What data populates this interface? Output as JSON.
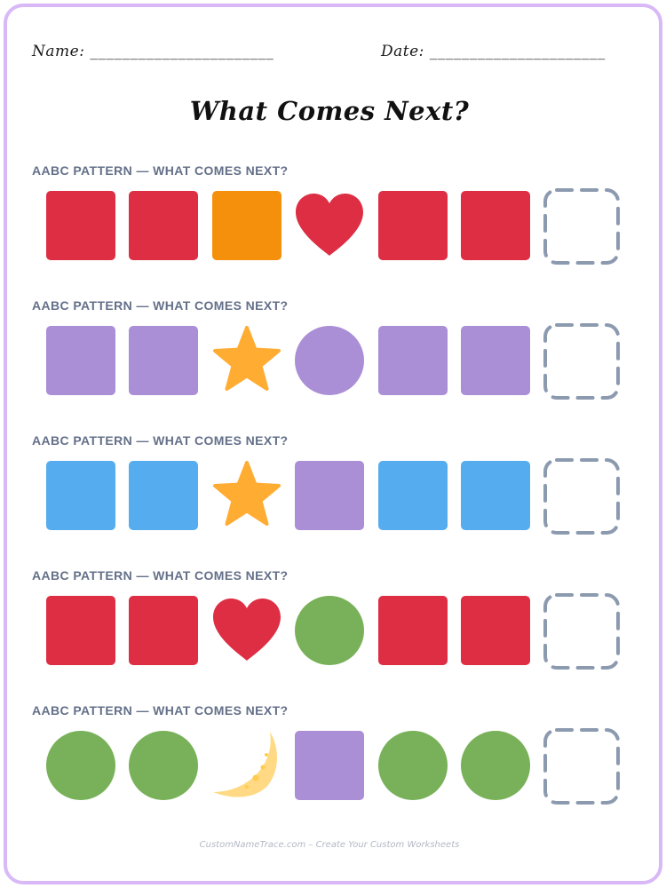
{
  "header": {
    "name_label": "Name: _______________________",
    "date_label": "Date: ______________________"
  },
  "title": "What Comes Next?",
  "patterns": [
    {
      "label": "AABC PATTERN — WHAT COMES NEXT?",
      "items": [
        {
          "shape": "square",
          "color": "#dd2e44"
        },
        {
          "shape": "square",
          "color": "#dd2e44"
        },
        {
          "shape": "square",
          "color": "#f4900c"
        },
        {
          "shape": "heart",
          "color": "#dd2e44"
        },
        {
          "shape": "square",
          "color": "#dd2e44"
        },
        {
          "shape": "square",
          "color": "#dd2e44"
        }
      ]
    },
    {
      "label": "AABC PATTERN — WHAT COMES NEXT?",
      "items": [
        {
          "shape": "square",
          "color": "#aa8ed6"
        },
        {
          "shape": "square",
          "color": "#aa8ed6"
        },
        {
          "shape": "star",
          "color": "#ffac33"
        },
        {
          "shape": "circle",
          "color": "#aa8ed6"
        },
        {
          "shape": "square",
          "color": "#aa8ed6"
        },
        {
          "shape": "square",
          "color": "#aa8ed6"
        }
      ]
    },
    {
      "label": "AABC PATTERN — WHAT COMES NEXT?",
      "items": [
        {
          "shape": "square",
          "color": "#55acee"
        },
        {
          "shape": "square",
          "color": "#55acee"
        },
        {
          "shape": "star",
          "color": "#ffac33"
        },
        {
          "shape": "square",
          "color": "#aa8ed6"
        },
        {
          "shape": "square",
          "color": "#55acee"
        },
        {
          "shape": "square",
          "color": "#55acee"
        }
      ]
    },
    {
      "label": "AABC PATTERN — WHAT COMES NEXT?",
      "items": [
        {
          "shape": "square",
          "color": "#dd2e44"
        },
        {
          "shape": "square",
          "color": "#dd2e44"
        },
        {
          "shape": "heart",
          "color": "#dd2e44"
        },
        {
          "shape": "circle",
          "color": "#78b159"
        },
        {
          "shape": "square",
          "color": "#dd2e44"
        },
        {
          "shape": "square",
          "color": "#dd2e44"
        }
      ]
    },
    {
      "label": "AABC PATTERN — WHAT COMES NEXT?",
      "items": [
        {
          "shape": "circle",
          "color": "#78b159"
        },
        {
          "shape": "circle",
          "color": "#78b159"
        },
        {
          "shape": "crescent-moon",
          "color": "#ffd983"
        },
        {
          "shape": "square",
          "color": "#aa8ed6"
        },
        {
          "shape": "circle",
          "color": "#78b159"
        },
        {
          "shape": "circle",
          "color": "#78b159"
        }
      ]
    }
  ],
  "answer_slot_color": "#8c9ab0",
  "border_color": "#d8b8f6",
  "footer": "CustomNameTrace.com – Create Your Custom Worksheets"
}
